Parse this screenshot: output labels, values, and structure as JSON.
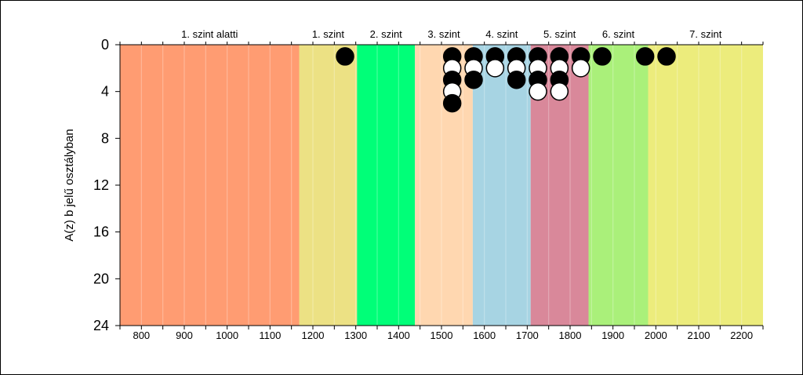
{
  "chart_data": {
    "type": "scatter",
    "title": "",
    "xlabel": "",
    "ylabel": "A(z) b jelű osztályban",
    "xlim": [
      750,
      2250
    ],
    "ylim": [
      0,
      24
    ],
    "y_inverted": true,
    "x_ticks": [
      800,
      900,
      1000,
      1100,
      1200,
      1300,
      1400,
      1500,
      1600,
      1700,
      1800,
      1900,
      2000,
      2100,
      2200
    ],
    "y_ticks": [
      0,
      4,
      8,
      12,
      16,
      20,
      24
    ],
    "bands": [
      {
        "label": "1. szint alatti",
        "from": 750,
        "to": 1168,
        "color": "#ff9c72"
      },
      {
        "label": "1. szint",
        "from": 1168,
        "to": 1303,
        "color": "#ece184"
      },
      {
        "label": "2. szint",
        "from": 1303,
        "to": 1438,
        "color": "#00ff78"
      },
      {
        "label": "3. szint",
        "from": 1438,
        "to": 1573,
        "color": "#ffd7b0"
      },
      {
        "label": "4. szint",
        "from": 1573,
        "to": 1708,
        "color": "#a7d4e3"
      },
      {
        "label": "5. szint",
        "from": 1708,
        "to": 1843,
        "color": "#d9889a"
      },
      {
        "label": "6. szint",
        "from": 1843,
        "to": 1982,
        "color": "#aaf07a"
      },
      {
        "label": "7. szint",
        "from": 1982,
        "to": 2250,
        "color": "#ecec7c"
      }
    ],
    "points": [
      {
        "x": 1275,
        "y": 1,
        "fill": "black"
      },
      {
        "x": 1525,
        "y": 1,
        "fill": "black"
      },
      {
        "x": 1525,
        "y": 2,
        "fill": "white"
      },
      {
        "x": 1525,
        "y": 3,
        "fill": "black"
      },
      {
        "x": 1525,
        "y": 4,
        "fill": "white"
      },
      {
        "x": 1525,
        "y": 5,
        "fill": "black"
      },
      {
        "x": 1575,
        "y": 1,
        "fill": "black"
      },
      {
        "x": 1575,
        "y": 2,
        "fill": "white"
      },
      {
        "x": 1575,
        "y": 3,
        "fill": "black"
      },
      {
        "x": 1625,
        "y": 1,
        "fill": "black"
      },
      {
        "x": 1625,
        "y": 2,
        "fill": "white"
      },
      {
        "x": 1675,
        "y": 1,
        "fill": "black"
      },
      {
        "x": 1675,
        "y": 2,
        "fill": "white"
      },
      {
        "x": 1675,
        "y": 3,
        "fill": "black"
      },
      {
        "x": 1725,
        "y": 1,
        "fill": "black"
      },
      {
        "x": 1725,
        "y": 2,
        "fill": "white"
      },
      {
        "x": 1725,
        "y": 3,
        "fill": "black"
      },
      {
        "x": 1725,
        "y": 4,
        "fill": "white"
      },
      {
        "x": 1775,
        "y": 1,
        "fill": "black"
      },
      {
        "x": 1775,
        "y": 2,
        "fill": "white"
      },
      {
        "x": 1775,
        "y": 3,
        "fill": "black"
      },
      {
        "x": 1775,
        "y": 4,
        "fill": "white"
      },
      {
        "x": 1825,
        "y": 1,
        "fill": "black"
      },
      {
        "x": 1825,
        "y": 2,
        "fill": "white"
      },
      {
        "x": 1875,
        "y": 1,
        "fill": "black"
      },
      {
        "x": 1975,
        "y": 1,
        "fill": "black"
      },
      {
        "x": 2025,
        "y": 1,
        "fill": "black"
      }
    ],
    "grid": true,
    "legend": "none"
  }
}
